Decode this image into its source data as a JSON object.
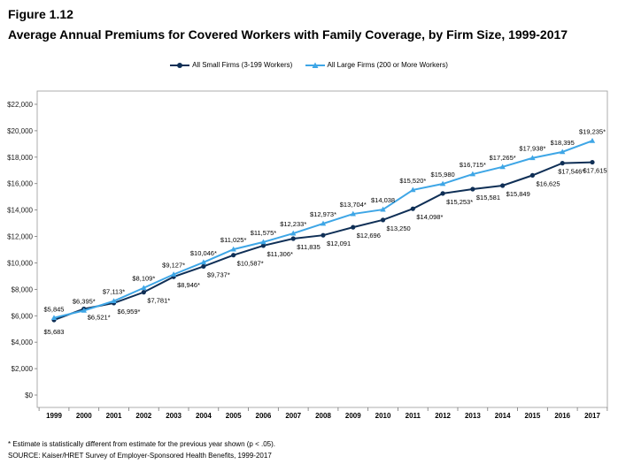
{
  "figure": {
    "label": "Figure 1.12",
    "title": "Average Annual Premiums for Covered Workers with Family Coverage, by Firm Size, 1999-2017"
  },
  "footnotes": {
    "note": "* Estimate is statistically different from estimate for the previous year shown (p < .05).",
    "source": "SOURCE: Kaiser/HRET Survey of Employer-Sponsored Health Benefits, 1999-2017"
  },
  "chart_data": {
    "type": "line",
    "x": [
      "1999",
      "2000",
      "2001",
      "2002",
      "2003",
      "2004",
      "2005",
      "2006",
      "2007",
      "2008",
      "2009",
      "2010",
      "2011",
      "2012",
      "2013",
      "2014",
      "2015",
      "2016",
      "2017"
    ],
    "yticks": [
      "$0",
      "$2,000",
      "$4,000",
      "$6,000",
      "$8,000",
      "$10,000",
      "$12,000",
      "$14,000",
      "$16,000",
      "$18,000",
      "$20,000",
      "$22,000"
    ],
    "ylim": [
      0,
      22000
    ],
    "grid": false,
    "legend_position": "top-center",
    "series": [
      {
        "name": "All Small Firms (3-199 Workers)",
        "color": "#0f2f56",
        "marker": "circle",
        "values": [
          5683,
          6521,
          6959,
          7781,
          8946,
          9737,
          10587,
          11306,
          11835,
          12091,
          12696,
          13250,
          14098,
          15253,
          15581,
          15849,
          16625,
          17546,
          17615
        ],
        "labels": [
          "$5,683",
          "$6,521*",
          "$6,959*",
          "$7,781*",
          "$8,946*",
          "$9,737*",
          "$10,587*",
          "$11,306*",
          "$11,835",
          "$12,091",
          "$12,696",
          "$13,250",
          "$14,098*",
          "$15,253*",
          "$15,581",
          "$15,849",
          "$16,625",
          "$17,546*",
          "$17,615"
        ]
      },
      {
        "name": "All Large Firms (200 or More Workers)",
        "color": "#3ea6e6",
        "marker": "triangle",
        "values": [
          5845,
          6395,
          7113,
          8109,
          9127,
          10046,
          11025,
          11575,
          12233,
          12973,
          13704,
          14038,
          15520,
          15980,
          16715,
          17265,
          17938,
          18395,
          19235
        ],
        "labels": [
          "$5,845",
          "$6,395*",
          "$7,113*",
          "$8,109*",
          "$9,127*",
          "$10,046*",
          "$11,025*",
          "$11,575*",
          "$12,233*",
          "$12,973*",
          "$13,704*",
          "$14,038",
          "$15,520*",
          "$15,980",
          "$16,715*",
          "$17,265*",
          "$17,938*",
          "$18,395",
          "$19,235*"
        ]
      }
    ]
  }
}
